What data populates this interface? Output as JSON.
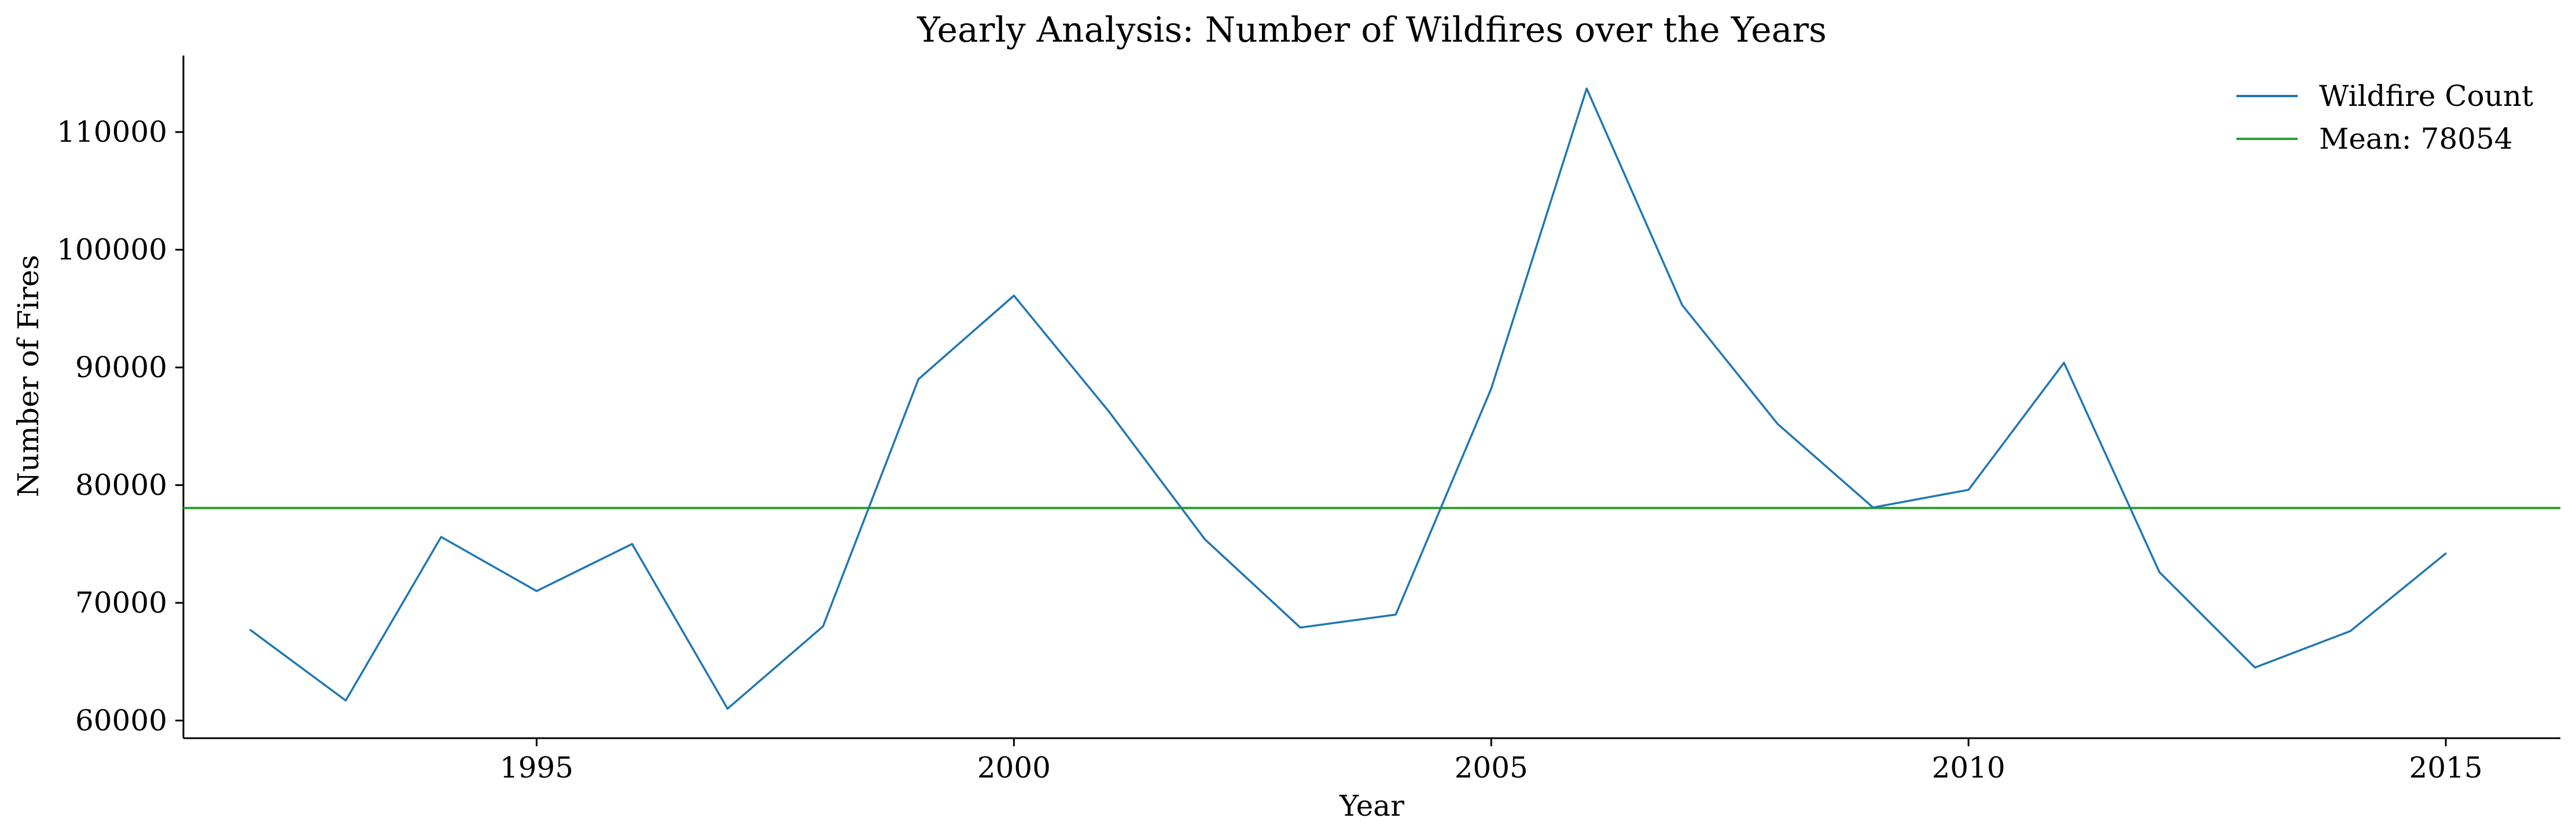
{
  "chart_data": {
    "type": "line",
    "title": "Yearly Analysis: Number of Wildfires over the Years",
    "xlabel": "Year",
    "ylabel": "Number of Fires",
    "xlim": [
      1991.3,
      2016.2
    ],
    "ylim": [
      58500,
      116500
    ],
    "x_ticks": [
      1995,
      2000,
      2005,
      2010,
      2015
    ],
    "y_ticks": [
      60000,
      70000,
      80000,
      90000,
      100000,
      110000
    ],
    "grid": false,
    "legend_position": "top-right",
    "series": [
      {
        "name": "Wildfire Count",
        "color": "#1f77b4",
        "x": [
          1992,
          1993,
          1994,
          1995,
          1996,
          1997,
          1998,
          1999,
          2000,
          2001,
          2002,
          2003,
          2004,
          2005,
          2006,
          2007,
          2008,
          2009,
          2010,
          2011,
          2012,
          2013,
          2014,
          2015
        ],
        "y": [
          67700,
          61700,
          75600,
          71000,
          75000,
          61000,
          68000,
          89000,
          96100,
          86200,
          75400,
          67900,
          69000,
          88200,
          113700,
          95300,
          85200,
          78100,
          79600,
          90400,
          72600,
          64500,
          67600,
          74200
        ]
      }
    ],
    "reference_lines": [
      {
        "name": "Mean: 78054",
        "value": 78054,
        "color": "#2ca02c"
      }
    ]
  }
}
